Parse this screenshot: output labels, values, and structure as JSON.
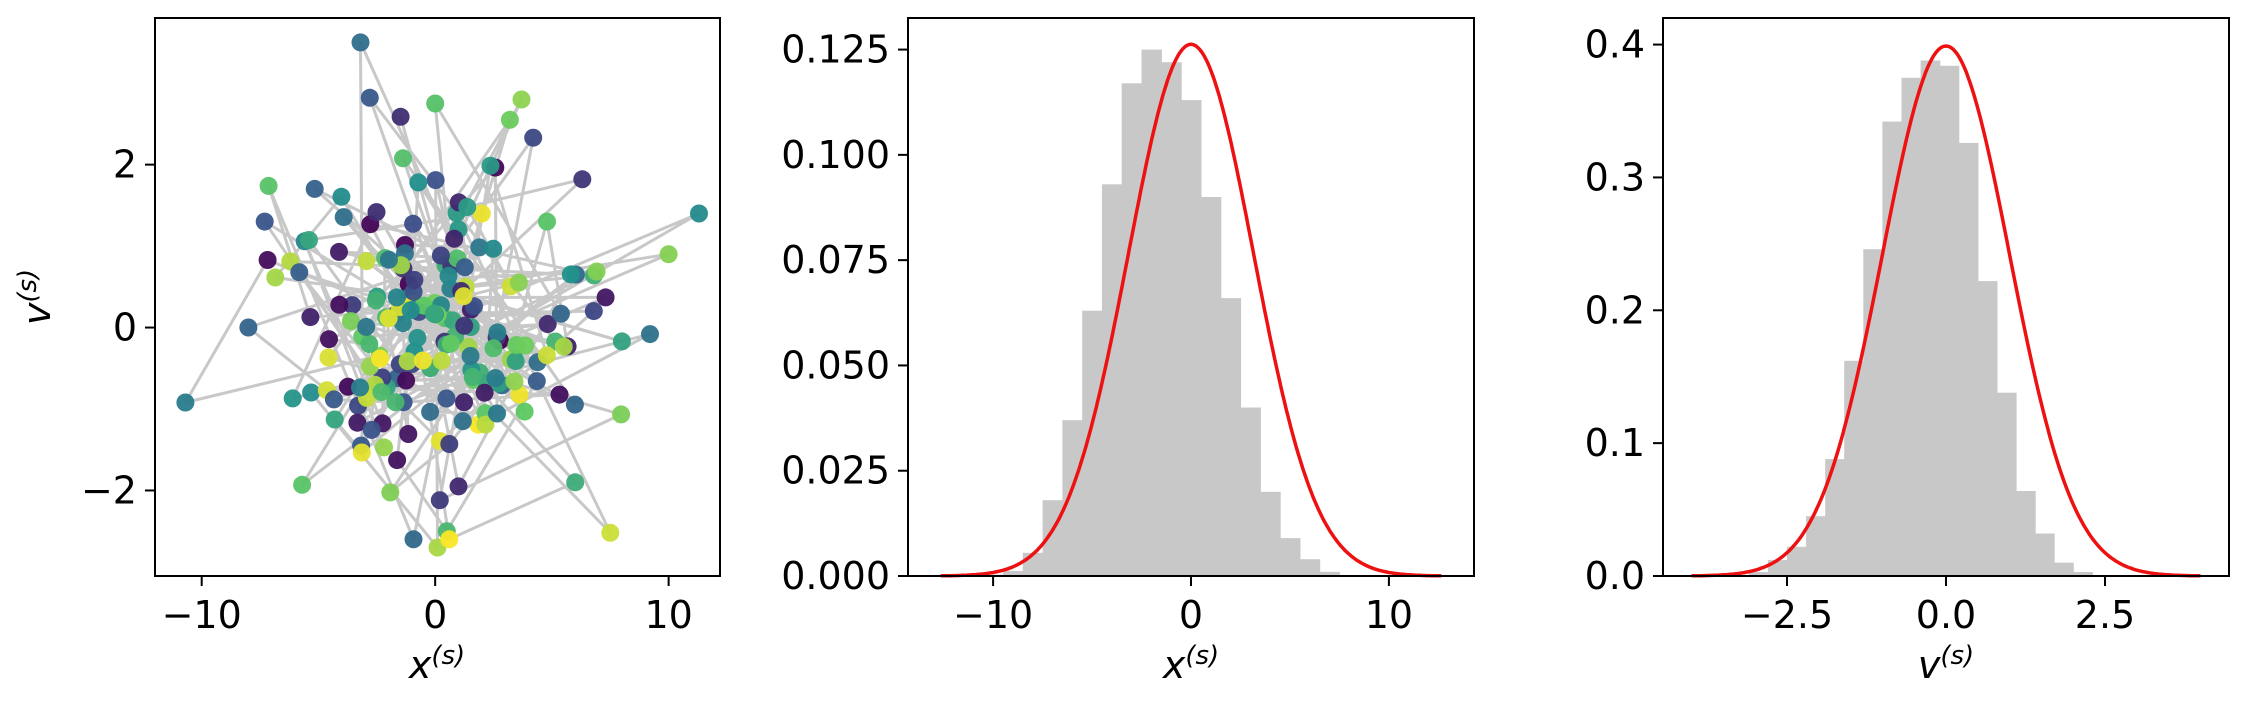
{
  "colors": {
    "trajectory_line": "#c8c8c8",
    "histogram_fill": "#c8c8c8",
    "density_curve": "#ee1111",
    "point_colormap": [
      "#440154",
      "#3b528b",
      "#21918c",
      "#5ec962",
      "#fde725"
    ]
  },
  "chart_data": [
    {
      "type": "scatter",
      "xlabel": {
        "base": "x",
        "sup": "(s)"
      },
      "ylabel": {
        "base": "v",
        "sup": "(s)"
      },
      "xlim": [
        -12,
        12.2
      ],
      "ylim": [
        -3.05,
        3.8
      ],
      "xticks": [
        -10,
        0,
        10
      ],
      "xtick_labels": [
        "−10",
        "0",
        "10"
      ],
      "yticks": [
        -2,
        0,
        2
      ],
      "ytick_labels": [
        "−2",
        "0",
        "2"
      ],
      "connected": true,
      "color_by": "sample order (viridis)",
      "n_points": 200,
      "notable_points": [
        {
          "x": 11.3,
          "v": 1.4
        },
        {
          "x": -10.7,
          "v": -0.92
        },
        {
          "x": -3.2,
          "v": 3.5
        },
        {
          "x": 7.5,
          "v": -2.52
        },
        {
          "x": 0.1,
          "v": -2.7
        },
        {
          "x": 10.0,
          "v": 0.9
        },
        {
          "x": 9.2,
          "v": -0.08
        },
        {
          "x": -8.0,
          "v": 0.0
        },
        {
          "x": -7.3,
          "v": 1.3
        },
        {
          "x": 3.7,
          "v": 2.8
        },
        {
          "x": 3.2,
          "v": 2.55
        },
        {
          "x": 0.0,
          "v": 2.75
        },
        {
          "x": -2.8,
          "v": 2.82
        },
        {
          "x": 4.2,
          "v": 2.33
        },
        {
          "x": 6.3,
          "v": 1.82
        },
        {
          "x": -5.7,
          "v": -1.93
        },
        {
          "x": 0.5,
          "v": -2.5
        },
        {
          "x": 6.0,
          "v": -1.9
        },
        {
          "x": 0.2,
          "v": -2.12
        },
        {
          "x": 1.0,
          "v": -1.95
        },
        {
          "x": 7.3,
          "v": 0.37
        },
        {
          "x": 6.8,
          "v": 0.64
        },
        {
          "x": 8.0,
          "v": -0.17
        },
        {
          "x": -6.1,
          "v": -0.87
        }
      ]
    },
    {
      "type": "bar",
      "subtype": "histogram with density curve",
      "xlabel": {
        "base": "x",
        "sup": "(s)"
      },
      "ylabel": "",
      "xlim": [
        -14.3,
        14.3
      ],
      "ylim": [
        0,
        0.1325
      ],
      "xticks": [
        -10,
        0,
        10
      ],
      "xtick_labels": [
        "−10",
        "0",
        "10"
      ],
      "yticks": [
        0,
        0.025,
        0.05,
        0.075,
        0.1,
        0.125
      ],
      "ytick_labels": [
        "0.000",
        "0.025",
        "0.050",
        "0.075",
        "0.100",
        "0.125"
      ],
      "bin_edges": [
        -12.5,
        -11.5,
        -10.5,
        -9.5,
        -8.5,
        -7.5,
        -6.5,
        -5.5,
        -4.5,
        -3.5,
        -2.5,
        -1.5,
        -0.5,
        0.5,
        1.5,
        2.5,
        3.5,
        4.5,
        5.5,
        6.5,
        7.5,
        8.5,
        9.5,
        10.5,
        11.5,
        12.5
      ],
      "values": [
        0,
        0.0001,
        0.0003,
        0.0012,
        0.0055,
        0.018,
        0.037,
        0.063,
        0.093,
        0.117,
        0.125,
        0.122,
        0.113,
        0.09,
        0.066,
        0.04,
        0.02,
        0.009,
        0.004,
        0.001,
        0,
        0,
        0,
        0,
        0
      ],
      "curve": {
        "name": "normal pdf",
        "mean": 0,
        "std": 3.16,
        "x_range": [
          -12.65,
          12.65
        ]
      }
    },
    {
      "type": "bar",
      "subtype": "histogram with density curve",
      "xlabel": {
        "base": "v",
        "sup": "(s)"
      },
      "ylabel": "",
      "xlim": [
        -4.45,
        4.45
      ],
      "ylim": [
        0,
        0.42
      ],
      "xticks": [
        -2.5,
        0,
        2.5
      ],
      "xtick_labels": [
        "−2.5",
        "0.0",
        "2.5"
      ],
      "yticks": [
        0,
        0.1,
        0.2,
        0.3,
        0.4
      ],
      "ytick_labels": [
        "0.0",
        "0.1",
        "0.2",
        "0.3",
        "0.4"
      ],
      "bin_edges": [
        -4.0,
        -3.7,
        -3.4,
        -3.1,
        -2.8,
        -2.5,
        -2.2,
        -1.9,
        -1.6,
        -1.3,
        -1.0,
        -0.7,
        -0.4,
        -0.1,
        0.2,
        0.5,
        0.8,
        1.1,
        1.4,
        1.7,
        2.0,
        2.3,
        2.6,
        2.9,
        3.2,
        3.5,
        3.8
      ],
      "values": [
        0,
        0,
        0,
        0.003,
        0.012,
        0.022,
        0.045,
        0.088,
        0.162,
        0.246,
        0.342,
        0.375,
        0.388,
        0.384,
        0.326,
        0.222,
        0.138,
        0.064,
        0.032,
        0.01,
        0.003,
        0,
        0,
        0,
        0,
        0
      ],
      "curve": {
        "name": "normal pdf",
        "mean": 0,
        "std": 1,
        "x_range": [
          -4.0,
          4.0
        ]
      }
    }
  ]
}
